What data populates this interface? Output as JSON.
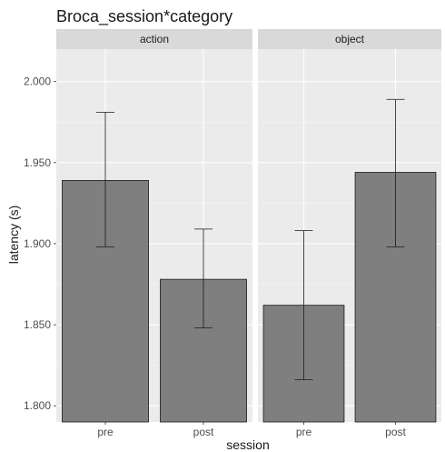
{
  "chart_data": {
    "type": "bar",
    "title": "Broca_session*category",
    "xlabel": "session",
    "ylabel": "latency (s)",
    "facets": [
      "action",
      "object"
    ],
    "categories": [
      "pre",
      "post"
    ],
    "ylim": [
      1.79,
      2.02
    ],
    "yticks": [
      1.8,
      1.85,
      1.9,
      1.95,
      2.0
    ],
    "ytick_labels": [
      "1.800",
      "1.850",
      "1.900",
      "1.950",
      "2.000"
    ],
    "grid": true,
    "panels": [
      {
        "facet": "action",
        "values": [
          1.939,
          1.878
        ],
        "error_low": [
          1.898,
          1.848
        ],
        "error_high": [
          1.981,
          1.909
        ]
      },
      {
        "facet": "object",
        "values": [
          1.862,
          1.944
        ],
        "error_low": [
          1.816,
          1.898
        ],
        "error_high": [
          1.908,
          1.989
        ]
      }
    ],
    "colors": {
      "bar_fill": "#7f7f7f",
      "bar_stroke": "#1a1a1a",
      "panel_bg": "#ebebeb",
      "strip_bg": "#d9d9d9",
      "grid_major": "#ffffff",
      "text": "#1a1a1a",
      "tick_text": "#4d4d4d"
    }
  }
}
